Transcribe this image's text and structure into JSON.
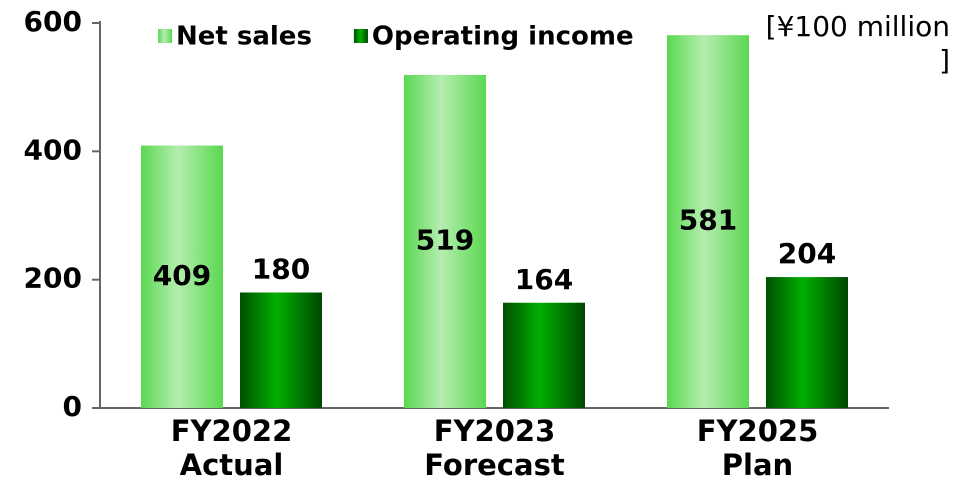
{
  "chart_data": {
    "type": "bar",
    "unit_label": "[¥100 million ]",
    "categories": [
      "FY2022\nActual",
      "FY2023\nForecast",
      "FY2025\nPlan"
    ],
    "series": [
      {
        "name": "Net sales",
        "color": "#5ad850",
        "values": [
          409,
          519,
          581
        ]
      },
      {
        "name": "Operating income",
        "color": "#00b000",
        "values": [
          180,
          164,
          204
        ]
      }
    ],
    "ylim": [
      0,
      600
    ],
    "yticks": [
      0,
      200,
      400,
      600
    ],
    "legend": "top"
  }
}
